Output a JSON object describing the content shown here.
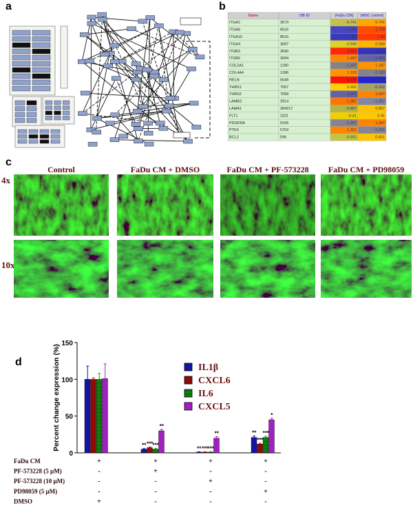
{
  "panel_labels": [
    "a",
    "b",
    "c",
    "d"
  ],
  "table": {
    "header": [
      "Name",
      "DB ID",
      "|FaDu CM|",
      "|MSC control|"
    ],
    "rows": [
      [
        "ITGA2",
        "3673",
        "-0.741",
        "0.741"
      ],
      [
        "ITGA8",
        "8516",
        "-1.729",
        "1.729"
      ],
      [
        "ITGA10",
        "8515",
        "-1.89",
        "1.89"
      ],
      [
        "ITGAX",
        "3687",
        "-0.558",
        "0.558"
      ],
      [
        "ITGB3",
        "3690",
        "2.213",
        "-2.213"
      ],
      [
        "ITGB6",
        "3694",
        "1.497",
        "-1.497"
      ],
      [
        "COL2A1",
        "1280",
        "-1.187",
        "1.187"
      ],
      [
        "COL4A4",
        "1286",
        "1.193",
        "-1.193"
      ],
      [
        "RELN",
        "5649",
        "2.625",
        "-2.625"
      ],
      [
        "THBS1",
        "7057",
        "0.902",
        "-0.902"
      ],
      [
        "THBS2",
        "7058",
        "-1.547",
        "1.547"
      ],
      [
        "LAMB3",
        "3914",
        "1.367",
        "-1.367"
      ],
      [
        "LAMA1",
        "284217",
        "-0.857",
        "0.857"
      ],
      [
        "FLT1",
        "2321",
        "-0.41",
        "0.41"
      ],
      [
        "PDGFRA",
        "5156",
        "-1.397",
        "1.397"
      ],
      [
        "PTK6",
        "5753",
        "1.321",
        "-1.321"
      ],
      [
        "BCL2",
        "596",
        "-0.651",
        "0.651"
      ]
    ],
    "cell_colors": [
      [
        "#c8c048",
        "#ffa800"
      ],
      [
        "#4646c0",
        "#ff4a00"
      ],
      [
        "#3a3ab8",
        "#ff3a00"
      ],
      [
        "#e0d020",
        "#ffb400"
      ],
      [
        "#ff2800",
        "#3434b4"
      ],
      [
        "#ff8400",
        "#6464a4"
      ],
      [
        "#848484",
        "#ff9400"
      ],
      [
        "#ff9400",
        "#848484"
      ],
      [
        "#ff1400",
        "#2424d0"
      ],
      [
        "#ffd000",
        "#a4a464"
      ],
      [
        "#6464a4",
        "#ff8400"
      ],
      [
        "#ff7400",
        "#8484a4"
      ],
      [
        "#b4b444",
        "#ffc400"
      ],
      [
        "#f0d000",
        "#ffc800"
      ],
      [
        "#848494",
        "#ff8400"
      ],
      [
        "#ff8400",
        "#848494"
      ],
      [
        "#c4c444",
        "#ffc400"
      ]
    ]
  },
  "micrographs": {
    "columns": [
      "Control",
      "FaDu CM + DMSO",
      "FaDu CM + PF-573228",
      "FaDu CM + PD98059"
    ],
    "rows": [
      "4x",
      "10x"
    ]
  },
  "chart_data": {
    "type": "bar",
    "y_label": "Percent change expression (%)",
    "ylim": [
      0,
      150
    ],
    "yticks": [
      0,
      50,
      100,
      150
    ],
    "series": [
      {
        "name": "IL1β",
        "color": "#1414a0",
        "fill_pattern": null,
        "values": [
          100,
          5,
          1,
          21
        ],
        "errors": [
          18,
          1,
          0.5,
          2
        ],
        "annotations": [
          null,
          "**",
          "**",
          "**"
        ]
      },
      {
        "name": "CXCL6",
        "color": "#c01010",
        "fill_pattern": "checker",
        "values": [
          100,
          7,
          1,
          12
        ],
        "errors": [
          2,
          1,
          0.5,
          1
        ],
        "annotations": [
          null,
          "***",
          "***",
          "***"
        ]
      },
      {
        "name": "IL6",
        "color": "#10a010",
        "fill_pattern": "stripes",
        "values": [
          100,
          5,
          1,
          21
        ],
        "errors": [
          8,
          1,
          0.5,
          1.5
        ],
        "annotations": [
          null,
          "***",
          "***",
          "***"
        ]
      },
      {
        "name": "CXCL5",
        "color": "#a020c0",
        "fill_pattern": null,
        "values": [
          101,
          30,
          20,
          45
        ],
        "errors": [
          20,
          2,
          2,
          2
        ],
        "annotations": [
          null,
          "**",
          "**",
          "*"
        ]
      }
    ],
    "treatments": [
      {
        "name": "FaDu CM",
        "signs": [
          "+",
          "+",
          "+",
          "+"
        ]
      },
      {
        "name": "PF-573228 (5 μM)",
        "signs": [
          "-",
          "+",
          "-",
          "-"
        ]
      },
      {
        "name": "PF-573228 (10 μM)",
        "signs": [
          "-",
          "-",
          "+",
          "-"
        ]
      },
      {
        "name": "PD98059 (5 μM)",
        "signs": [
          "-",
          "-",
          "-",
          "+"
        ]
      },
      {
        "name": "DMSO",
        "signs": [
          "+",
          "-",
          "-",
          "-"
        ]
      }
    ]
  }
}
